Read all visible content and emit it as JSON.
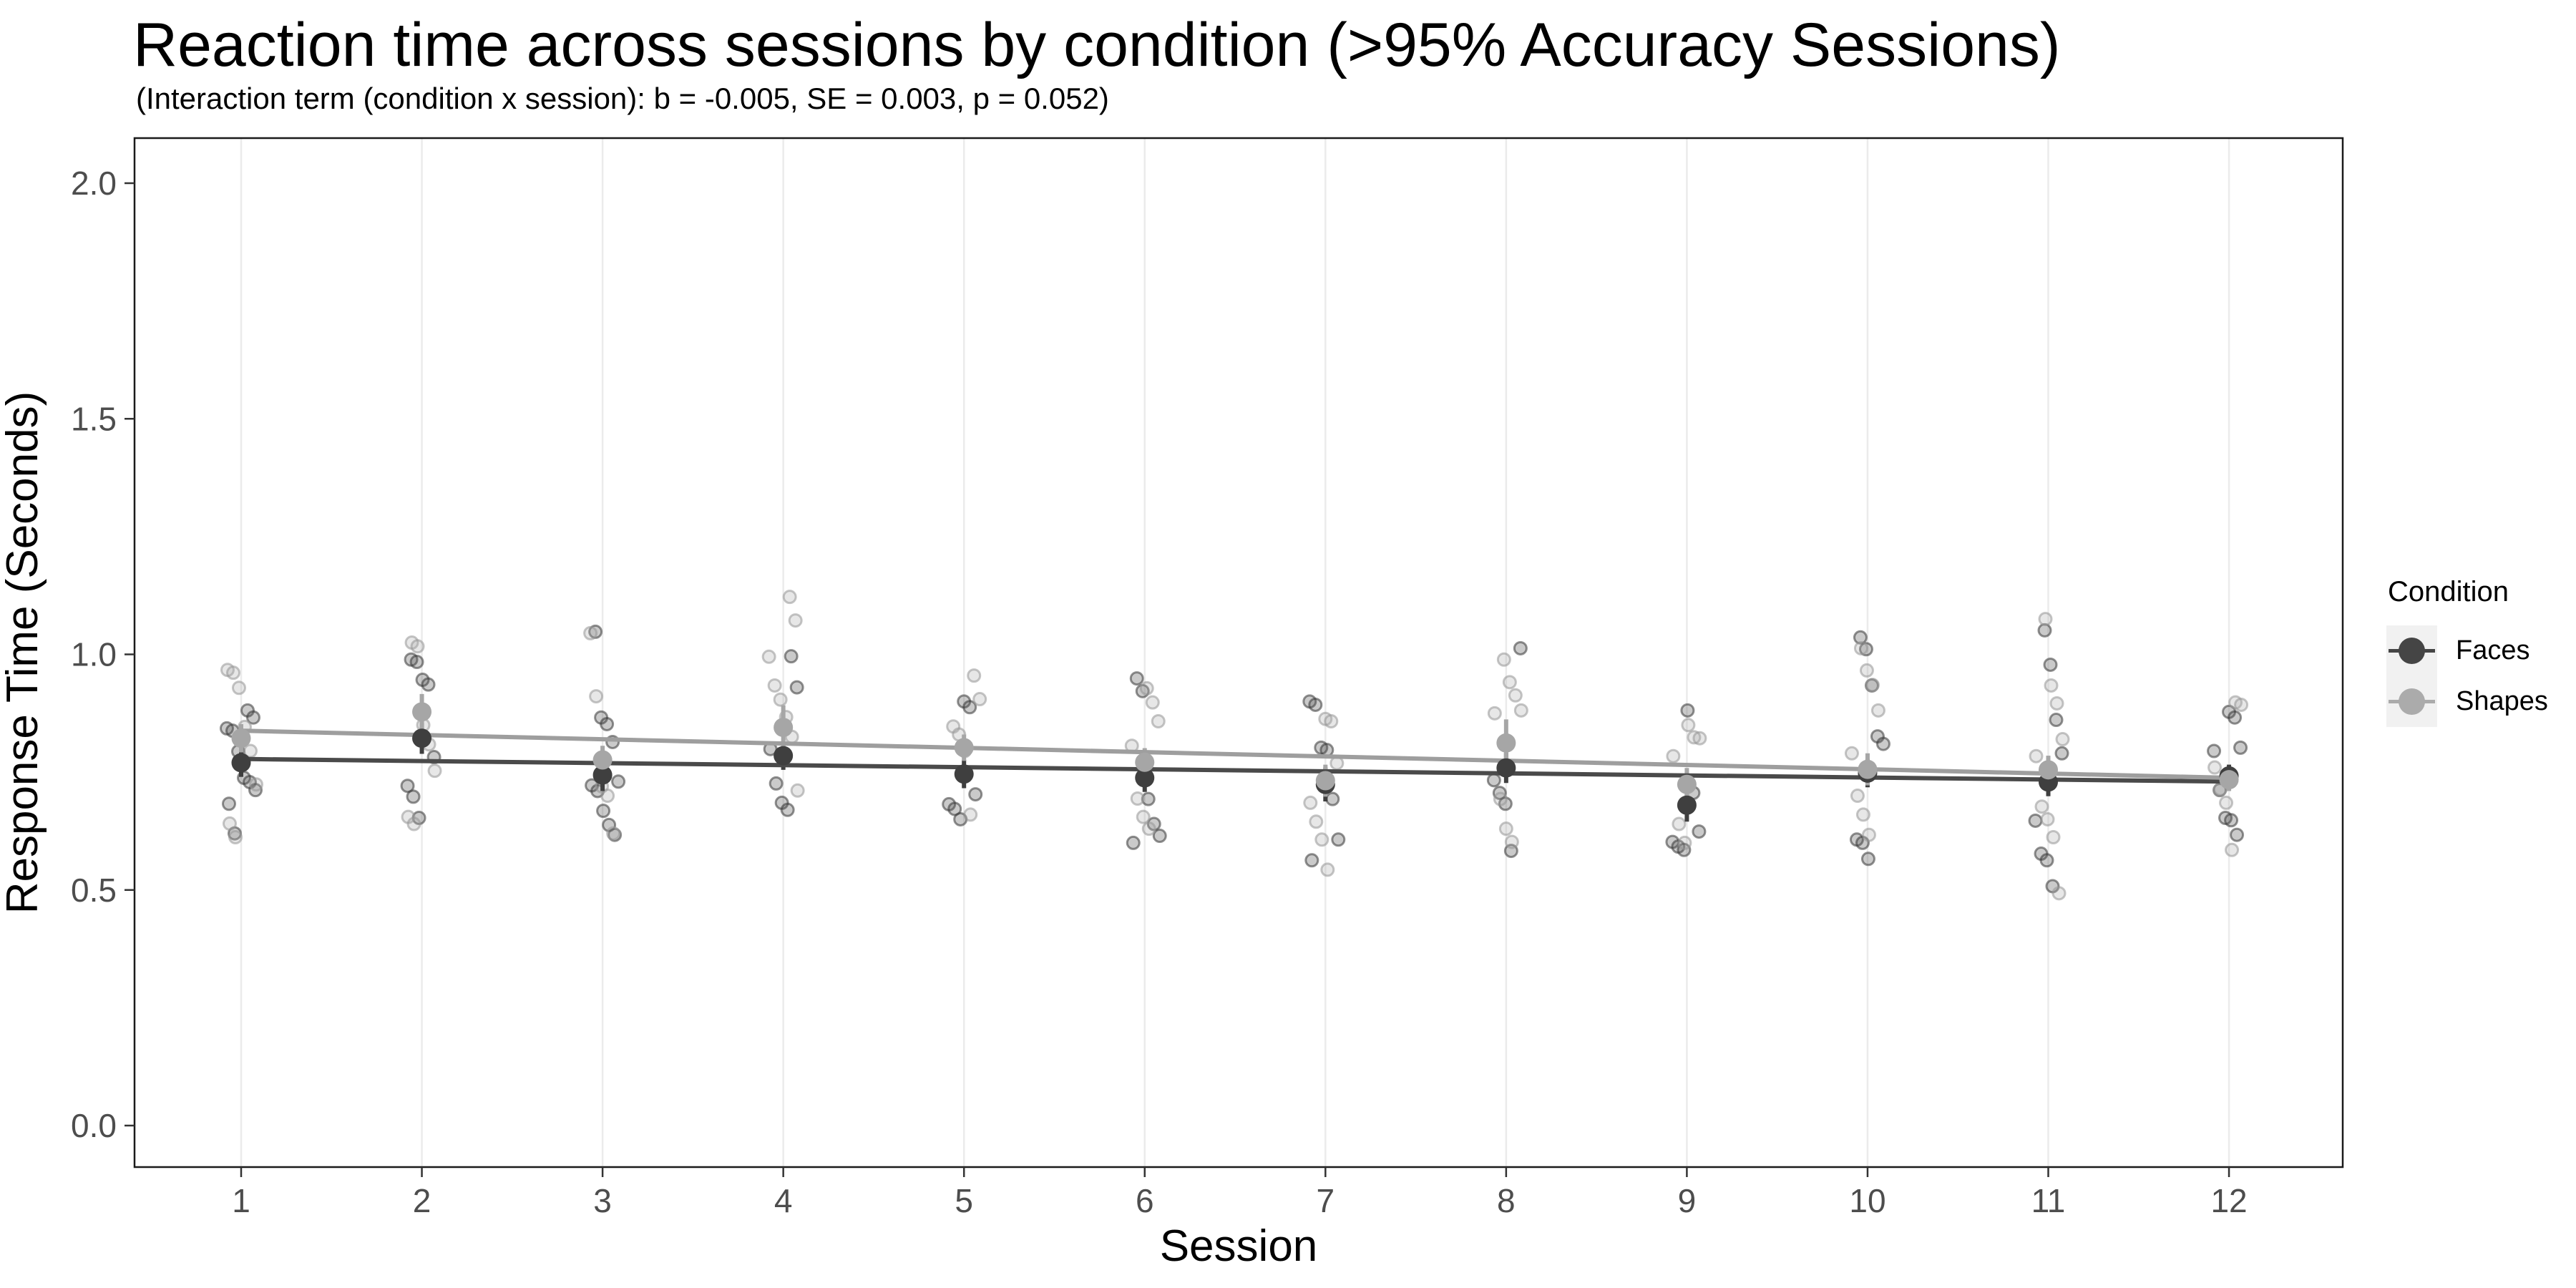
{
  "chart_data": {
    "type": "scatter",
    "title": "Reaction time across sessions by condition (>95% Accuracy Sessions)",
    "subtitle": "(Interaction term (condition x session): b = -0.005, SE = 0.003, p = 0.052)",
    "xlabel": "Session",
    "ylabel": "Response Time (Seconds)",
    "x_ticks": [
      "1",
      "2",
      "3",
      "4",
      "5",
      "6",
      "7",
      "8",
      "9",
      "10",
      "11",
      "12"
    ],
    "y_ticks": [
      "0.0",
      "0.5",
      "1.0",
      "1.5",
      "2.0"
    ],
    "y_tick_values": [
      0.0,
      0.5,
      1.0,
      1.5,
      2.0
    ],
    "xlim": [
      0.41,
      12.63
    ],
    "ylim": [
      -0.088,
      2.095
    ],
    "grid": {
      "vertical_major": true,
      "horizontal": false,
      "gridline_color": "#EBEBEB"
    },
    "panel": {
      "border_color": "#1A1A1A",
      "background": "#FFFFFF",
      "tick_color": "#333333",
      "tick_label_color": "#4D4D4D"
    },
    "legend": {
      "title": "Condition",
      "position": "right",
      "key_background": "#F1F1F1",
      "items": [
        {
          "label": "Faces",
          "color": "#454545"
        },
        {
          "label": "Shapes",
          "color": "#ABABAB"
        }
      ]
    },
    "series": [
      {
        "name": "Faces",
        "point_color": "#3F3F3F",
        "line_color": "#4A4A4A",
        "jitter_stroke": "rgba(55,55,55,0.55)",
        "jitter_fill": "rgba(80,80,80,0.30)",
        "trend": {
          "x": [
            1,
            12
          ],
          "y": [
            0.778,
            0.73
          ]
        },
        "means": [
          {
            "session": 1,
            "mean": 0.77,
            "se": 0.03
          },
          {
            "session": 2,
            "mean": 0.822,
            "se": 0.033
          },
          {
            "session": 3,
            "mean": 0.744,
            "se": 0.034
          },
          {
            "session": 4,
            "mean": 0.785,
            "se": 0.03
          },
          {
            "session": 5,
            "mean": 0.746,
            "se": 0.03
          },
          {
            "session": 6,
            "mean": 0.738,
            "se": 0.03
          },
          {
            "session": 7,
            "mean": 0.724,
            "se": 0.036
          },
          {
            "session": 8,
            "mean": 0.759,
            "se": 0.032
          },
          {
            "session": 9,
            "mean": 0.68,
            "se": 0.035
          },
          {
            "session": 10,
            "mean": 0.748,
            "se": 0.03
          },
          {
            "session": 11,
            "mean": 0.729,
            "se": 0.03
          },
          {
            "session": 12,
            "mean": 0.742,
            "se": 0.024
          }
        ],
        "points": [
          [
            1,
            0.881
          ],
          [
            1,
            0.866
          ],
          [
            1,
            0.843
          ],
          [
            1,
            0.838
          ],
          [
            1,
            0.794
          ],
          [
            1,
            0.738
          ],
          [
            1,
            0.729
          ],
          [
            1,
            0.712
          ],
          [
            1,
            0.683
          ],
          [
            1,
            0.62
          ],
          [
            2,
            0.989
          ],
          [
            2,
            0.984
          ],
          [
            2,
            0.946
          ],
          [
            2,
            0.936
          ],
          [
            2,
            0.782
          ],
          [
            2,
            0.721
          ],
          [
            2,
            0.698
          ],
          [
            2,
            0.653
          ],
          [
            3,
            1.048
          ],
          [
            3,
            0.866
          ],
          [
            3,
            0.852
          ],
          [
            3,
            0.814
          ],
          [
            3,
            0.73
          ],
          [
            3,
            0.722
          ],
          [
            3,
            0.71
          ],
          [
            3,
            0.668
          ],
          [
            3,
            0.638
          ],
          [
            3,
            0.617
          ],
          [
            4,
            0.996
          ],
          [
            4,
            0.93
          ],
          [
            4,
            0.799
          ],
          [
            4,
            0.726
          ],
          [
            4,
            0.685
          ],
          [
            4,
            0.67
          ],
          [
            5,
            0.9
          ],
          [
            5,
            0.888
          ],
          [
            5,
            0.703
          ],
          [
            5,
            0.682
          ],
          [
            5,
            0.672
          ],
          [
            5,
            0.65
          ],
          [
            6,
            0.949
          ],
          [
            6,
            0.922
          ],
          [
            6,
            0.693
          ],
          [
            6,
            0.64
          ],
          [
            6,
            0.615
          ],
          [
            6,
            0.6
          ],
          [
            7,
            0.9
          ],
          [
            7,
            0.893
          ],
          [
            7,
            0.802
          ],
          [
            7,
            0.797
          ],
          [
            7,
            0.693
          ],
          [
            7,
            0.607
          ],
          [
            7,
            0.563
          ],
          [
            8,
            1.013
          ],
          [
            8,
            0.733
          ],
          [
            8,
            0.706
          ],
          [
            8,
            0.683
          ],
          [
            8,
            0.583
          ],
          [
            9,
            0.881
          ],
          [
            9,
            0.706
          ],
          [
            9,
            0.624
          ],
          [
            9,
            0.602
          ],
          [
            9,
            0.592
          ],
          [
            9,
            0.585
          ],
          [
            10,
            1.036
          ],
          [
            10,
            1.011
          ],
          [
            10,
            0.934
          ],
          [
            10,
            0.826
          ],
          [
            10,
            0.81
          ],
          [
            10,
            0.607
          ],
          [
            10,
            0.6
          ],
          [
            10,
            0.566
          ],
          [
            11,
            1.051
          ],
          [
            11,
            0.978
          ],
          [
            11,
            0.861
          ],
          [
            11,
            0.79
          ],
          [
            11,
            0.647
          ],
          [
            11,
            0.577
          ],
          [
            11,
            0.563
          ],
          [
            11,
            0.508
          ],
          [
            12,
            0.878
          ],
          [
            12,
            0.866
          ],
          [
            12,
            0.802
          ],
          [
            12,
            0.795
          ],
          [
            12,
            0.712
          ],
          [
            12,
            0.653
          ],
          [
            12,
            0.648
          ],
          [
            12,
            0.617
          ]
        ]
      },
      {
        "name": "Shapes",
        "point_color": "#A6A6A6",
        "line_color": "#9E9E9E",
        "jitter_stroke": "rgba(150,150,150,0.55)",
        "jitter_fill": "rgba(170,170,170,0.28)",
        "trend": {
          "x": [
            1,
            12
          ],
          "y": [
            0.838,
            0.738
          ]
        },
        "means": [
          {
            "session": 1,
            "mean": 0.822,
            "se": 0.03
          },
          {
            "session": 2,
            "mean": 0.878,
            "se": 0.038
          },
          {
            "session": 3,
            "mean": 0.776,
            "se": 0.03
          },
          {
            "session": 4,
            "mean": 0.845,
            "se": 0.047
          },
          {
            "session": 5,
            "mean": 0.802,
            "se": 0.028
          },
          {
            "session": 6,
            "mean": 0.771,
            "se": 0.03
          },
          {
            "session": 7,
            "mean": 0.732,
            "se": 0.034
          },
          {
            "session": 8,
            "mean": 0.812,
            "se": 0.05
          },
          {
            "session": 9,
            "mean": 0.724,
            "se": 0.035
          },
          {
            "session": 10,
            "mean": 0.756,
            "se": 0.034
          },
          {
            "session": 11,
            "mean": 0.755,
            "se": 0.03
          },
          {
            "session": 12,
            "mean": 0.734,
            "se": 0.024
          }
        ],
        "points": [
          [
            1,
            0.967
          ],
          [
            1,
            0.961
          ],
          [
            1,
            0.929
          ],
          [
            1,
            0.846
          ],
          [
            1,
            0.795
          ],
          [
            1,
            0.724
          ],
          [
            1,
            0.641
          ],
          [
            1,
            0.612
          ],
          [
            2,
            1.025
          ],
          [
            2,
            1.017
          ],
          [
            2,
            0.85
          ],
          [
            2,
            0.809
          ],
          [
            2,
            0.753
          ],
          [
            2,
            0.655
          ],
          [
            2,
            0.64
          ],
          [
            3,
            1.045
          ],
          [
            3,
            0.911
          ],
          [
            3,
            0.72
          ],
          [
            3,
            0.7
          ],
          [
            3,
            0.62
          ],
          [
            4,
            1.122
          ],
          [
            4,
            1.072
          ],
          [
            4,
            0.995
          ],
          [
            4,
            0.934
          ],
          [
            4,
            0.904
          ],
          [
            4,
            0.867
          ],
          [
            4,
            0.825
          ],
          [
            4,
            0.711
          ],
          [
            5,
            0.955
          ],
          [
            5,
            0.905
          ],
          [
            5,
            0.847
          ],
          [
            5,
            0.83
          ],
          [
            5,
            0.795
          ],
          [
            5,
            0.66
          ],
          [
            6,
            0.928
          ],
          [
            6,
            0.898
          ],
          [
            6,
            0.858
          ],
          [
            6,
            0.806
          ],
          [
            6,
            0.694
          ],
          [
            6,
            0.655
          ],
          [
            6,
            0.63
          ],
          [
            7,
            0.863
          ],
          [
            7,
            0.858
          ],
          [
            7,
            0.769
          ],
          [
            7,
            0.685
          ],
          [
            7,
            0.645
          ],
          [
            7,
            0.607
          ],
          [
            7,
            0.543
          ],
          [
            8,
            0.989
          ],
          [
            8,
            0.941
          ],
          [
            8,
            0.913
          ],
          [
            8,
            0.881
          ],
          [
            8,
            0.875
          ],
          [
            8,
            0.693
          ],
          [
            8,
            0.63
          ],
          [
            8,
            0.602
          ],
          [
            9,
            0.85
          ],
          [
            9,
            0.824
          ],
          [
            9,
            0.822
          ],
          [
            9,
            0.784
          ],
          [
            9,
            0.64
          ],
          [
            9,
            0.6
          ],
          [
            10,
            1.013
          ],
          [
            10,
            0.966
          ],
          [
            10,
            0.935
          ],
          [
            10,
            0.881
          ],
          [
            10,
            0.79
          ],
          [
            10,
            0.7
          ],
          [
            10,
            0.66
          ],
          [
            10,
            0.617
          ],
          [
            11,
            1.075
          ],
          [
            11,
            0.934
          ],
          [
            11,
            0.896
          ],
          [
            11,
            0.82
          ],
          [
            11,
            0.784
          ],
          [
            11,
            0.677
          ],
          [
            11,
            0.65
          ],
          [
            11,
            0.612
          ],
          [
            11,
            0.493
          ],
          [
            12,
            0.898
          ],
          [
            12,
            0.893
          ],
          [
            12,
            0.76
          ],
          [
            12,
            0.714
          ],
          [
            12,
            0.685
          ],
          [
            12,
            0.585
          ]
        ]
      }
    ]
  }
}
